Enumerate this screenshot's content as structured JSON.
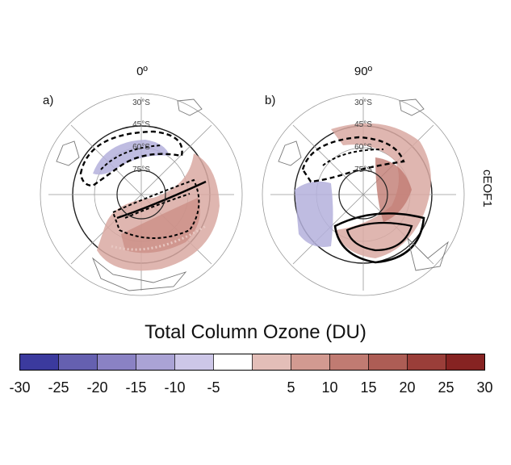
{
  "panels": [
    {
      "label": "a)",
      "phase": "0º",
      "lat_labels": [
        "30°S",
        "45°S",
        "60°S",
        "75°S"
      ]
    },
    {
      "label": "b)",
      "phase": "90º",
      "lat_labels": [
        "30°S",
        "45°S",
        "60°S",
        "75°S"
      ]
    }
  ],
  "row_label": "cEOF1",
  "colorbar": {
    "title": "Total Column Ozone (DU)",
    "ticks": [
      "-30",
      "-25",
      "-20",
      "-15",
      "-10",
      "-5",
      "5",
      "10",
      "15",
      "20",
      "25",
      "30"
    ],
    "colors": [
      "#3b3a9e",
      "#6560b0",
      "#8a82c4",
      "#aaa3d5",
      "#cdc7e8",
      "#ffffff",
      "#e3beb8",
      "#d29a91",
      "#c07b72",
      "#ad5d55",
      "#9a3e39",
      "#862322"
    ]
  }
}
